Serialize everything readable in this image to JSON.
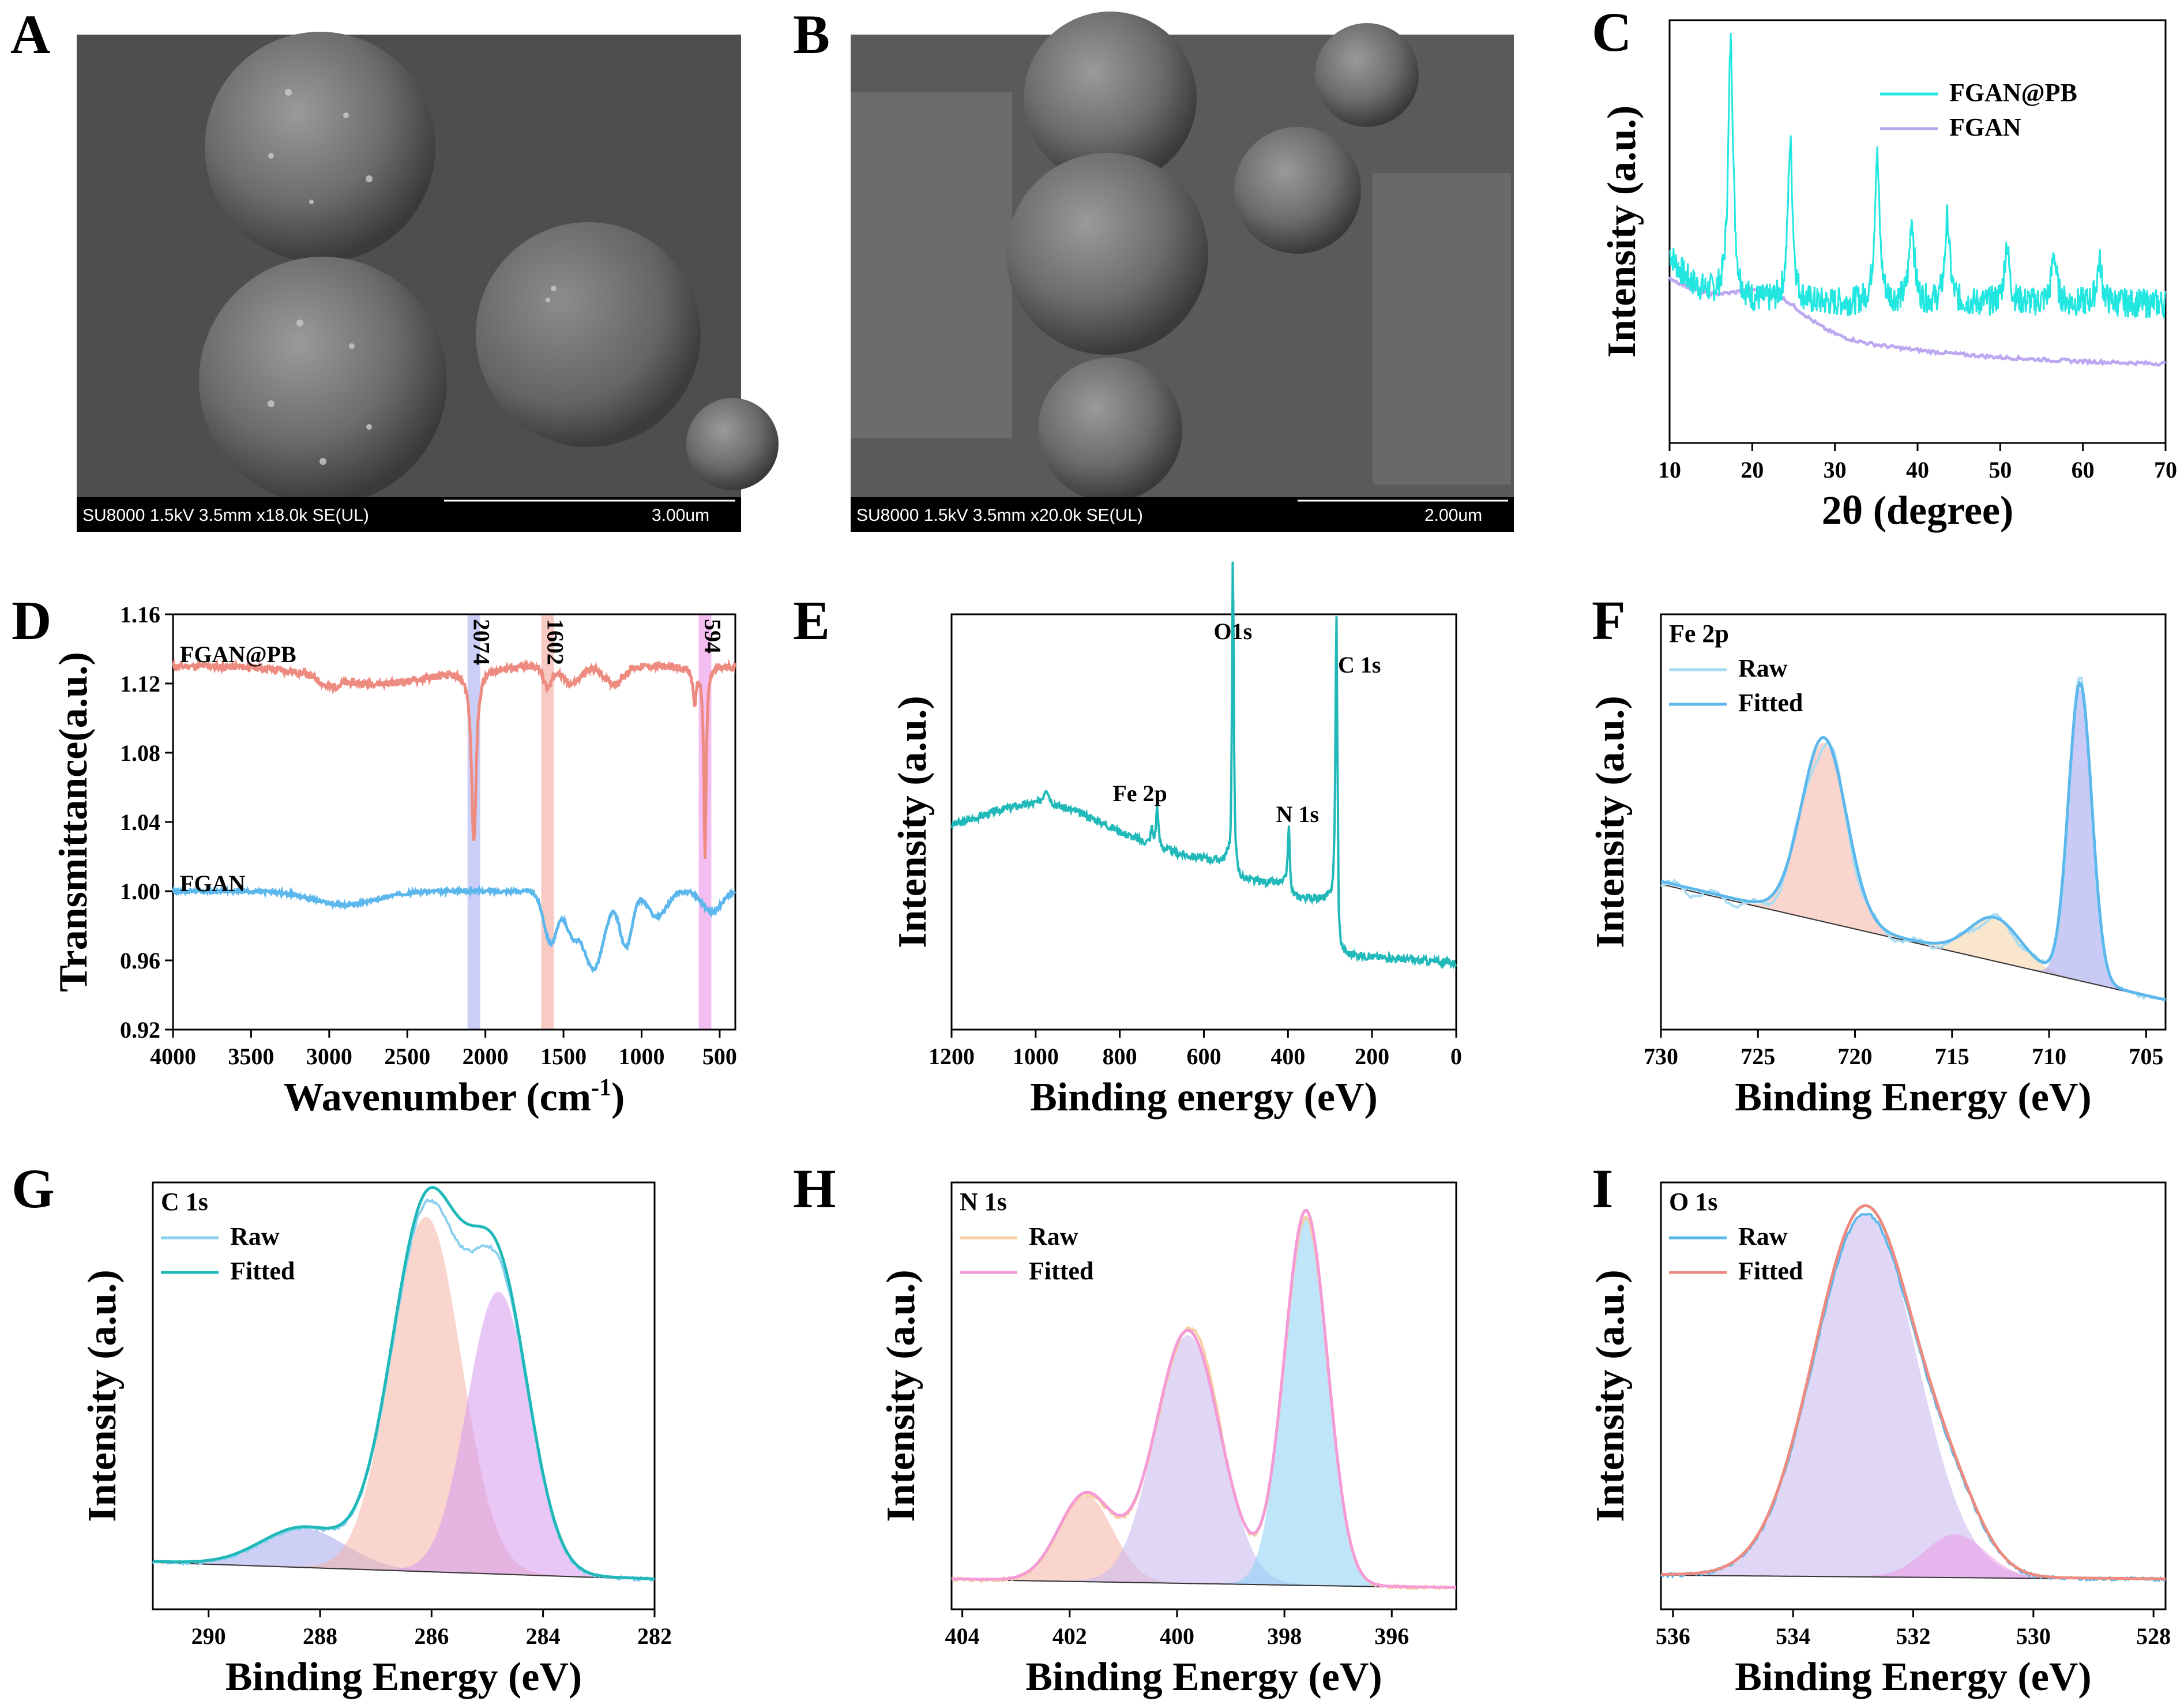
{
  "figure": {
    "type": "multi-panel scientific figure"
  },
  "sem_panels": [
    {
      "letter": "A",
      "caption": "SU8000 1.5kV 3.5mm x18.0k SE(UL)",
      "scale": "3.00um"
    },
    {
      "letter": "B",
      "caption": "SU8000 1.5kV 3.5mm x20.0k SE(UL)",
      "scale": "2.00um"
    }
  ],
  "colors": {
    "cyan": "#22e6e0",
    "lavender": "#bba8f0",
    "salmon": "#ee8b80",
    "sky": "#5cb8ec",
    "teal": "#20b8b8",
    "peachfill": "#f6b3a6",
    "violetfill": "#c8b8f2",
    "bluefill": "#8ad0f6"
  },
  "chart_data": [
    {
      "id": "C",
      "letter": "C",
      "type": "line",
      "xlabel": "2θ (degree)",
      "ylabel": "Intensity (a.u.)",
      "xlim": [
        10,
        70
      ],
      "xticks": [
        10,
        20,
        30,
        40,
        50,
        60,
        70
      ],
      "series": [
        {
          "name": "FGAN@PB",
          "peaks": [
            17.4,
            24.6,
            35.1,
            39.3,
            43.6,
            50.8,
            56.5,
            62.0
          ]
        },
        {
          "name": "FGAN",
          "trend": "broad hump near 22°, then decaying baseline"
        }
      ]
    },
    {
      "id": "D",
      "letter": "D",
      "type": "line",
      "xlabel": "Wavenumber (cm",
      "xlabel_sup": "-1",
      "xlabel_end": ")",
      "ylabel": "Transmittance(a.u.)",
      "xlim": [
        4000,
        400
      ],
      "ylim": [
        0.92,
        1.16
      ],
      "xticks": [
        4000,
        3500,
        3000,
        2500,
        2000,
        1500,
        1000,
        500
      ],
      "yticks": [
        "0.92",
        "0.96",
        "1.00",
        "1.04",
        "1.08",
        "1.12",
        "1.16"
      ],
      "bands": [
        {
          "x": 2074,
          "label": "2074"
        },
        {
          "x": 1602,
          "label": "1602"
        },
        {
          "x": 594,
          "label": "594"
        }
      ],
      "series": [
        {
          "name": "FGAN@PB",
          "baseline": 1.13,
          "dips": [
            [
              2074,
              1.03
            ],
            [
              1602,
              1.115
            ],
            [
              594,
              1.01
            ]
          ]
        },
        {
          "name": "FGAN",
          "baseline": 1.0,
          "dips": [
            [
              1580,
              0.968
            ],
            [
              1300,
              0.942
            ],
            [
              1100,
              0.96
            ]
          ]
        }
      ]
    },
    {
      "id": "E",
      "letter": "E",
      "type": "line",
      "xlabel": "Binding energy (eV)",
      "ylabel": "Intensity (a.u.)",
      "xlim": [
        1200,
        0
      ],
      "xticks": [
        1200,
        1000,
        800,
        600,
        400,
        200,
        0
      ],
      "peaks": [
        {
          "label": "Fe 2p",
          "x": 711
        },
        {
          "label": "O1s",
          "x": 531
        },
        {
          "label": "N 1s",
          "x": 398
        },
        {
          "label": "C 1s",
          "x": 285
        }
      ]
    },
    {
      "id": "F",
      "letter": "F",
      "type": "area",
      "title": "Fe 2p",
      "xlabel": "Binding Energy (eV)",
      "ylabel": "Intensity (a.u.)",
      "xlim": [
        730,
        704
      ],
      "xticks": [
        730,
        725,
        720,
        715,
        710,
        705
      ],
      "legend": [
        "Raw",
        "Fitted"
      ],
      "components": [
        {
          "center": 721.6
        },
        {
          "center": 712.8
        },
        {
          "center": 708.4
        }
      ]
    },
    {
      "id": "G",
      "letter": "G",
      "type": "area",
      "title": "C 1s",
      "xlabel": "Binding Energy (eV)",
      "ylabel": "Intensity (a.u.)",
      "xlim": [
        291,
        282
      ],
      "xticks": [
        290,
        288,
        286,
        284,
        282
      ],
      "legend": [
        "Raw",
        "Fitted"
      ],
      "components": [
        {
          "center": 288.3
        },
        {
          "center": 286.1
        },
        {
          "center": 284.8
        }
      ]
    },
    {
      "id": "H",
      "letter": "H",
      "type": "area",
      "title": "N 1s",
      "xlabel": "Binding Energy (eV)",
      "ylabel": "Intensity (a.u.)",
      "xlim": [
        404.2,
        394.8
      ],
      "xticks": [
        404,
        402,
        400,
        398,
        396
      ],
      "legend": [
        "Raw",
        "Fitted"
      ],
      "components": [
        {
          "center": 401.7
        },
        {
          "center": 399.8
        },
        {
          "center": 397.6
        }
      ]
    },
    {
      "id": "I",
      "letter": "I",
      "type": "area",
      "title": "O 1s",
      "xlabel": "Binding Energy (eV)",
      "ylabel": "Intensity (a.u.)",
      "xlim": [
        536.2,
        527.8
      ],
      "xticks": [
        536,
        534,
        532,
        530,
        528
      ],
      "legend": [
        "Raw",
        "Fitted"
      ],
      "components": [
        {
          "center": 532.8
        },
        {
          "center": 531.3
        }
      ]
    }
  ]
}
